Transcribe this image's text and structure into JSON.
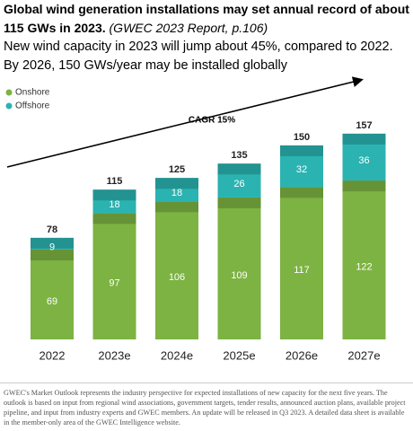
{
  "chart_data": {
    "type": "stacked_bar",
    "title": "Global wind generation installations may set annual record of about 115 GWs in 2023.",
    "source": "(GWEC  2023 Report, p.106)",
    "subtitle": "New wind capacity in 2023 will jump about 45%, compared to 2022. By 2026, 150 GWs/year may be installed globally",
    "annotation": "CAGR 15%",
    "categories": [
      "2022",
      "2023e",
      "2024e",
      "2025e",
      "2026e",
      "2027e"
    ],
    "series": [
      {
        "name": "Onshore",
        "color": "#7cb342",
        "values": [
          69,
          97,
          106,
          109,
          117,
          122
        ]
      },
      {
        "name": "Offshore",
        "color": "#2bb3b1",
        "values": [
          9,
          18,
          18,
          26,
          32,
          36
        ]
      }
    ],
    "totals": [
      78,
      115,
      125,
      135,
      150,
      157
    ],
    "footnote": "GWEC's Market Outlook represents the industry perspective for expected installations of new capacity for the next five years. The outlook is based on input from regional wind associations, government targets, tender results, announced auction plans, available project pipeline, and input from industry experts and GWEC members. An update will be released in Q3 2023. A detailed data sheet is available in the member-only area of the GWEC Intelligence website."
  }
}
